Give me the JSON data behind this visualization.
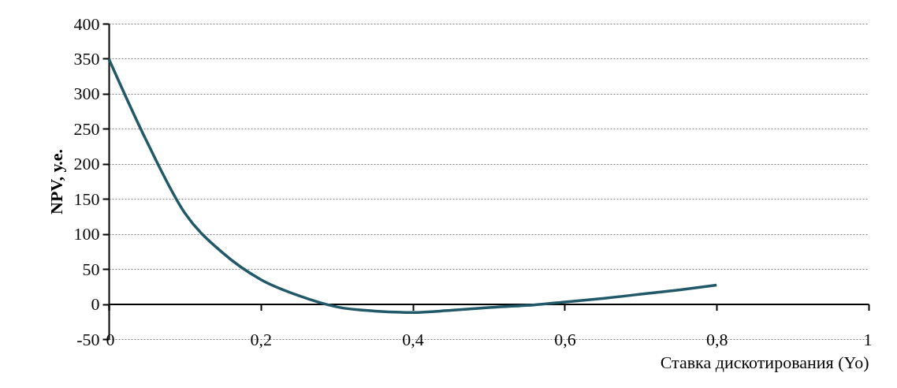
{
  "chart_data": {
    "type": "line",
    "xlabel": "Ставка дискотирования (Yo)",
    "ylabel": "NPV, у.е.",
    "x": [
      0,
      0.05,
      0.1,
      0.15,
      0.2,
      0.25,
      0.3,
      0.35,
      0.4,
      0.45,
      0.5,
      0.55,
      0.6,
      0.65,
      0.7,
      0.75,
      0.8
    ],
    "series": [
      {
        "color": "#215968",
        "values": [
          350,
          232,
          130,
          73,
          35,
          12,
          -4,
          -10,
          -12,
          -9,
          -5,
          -2,
          3,
          8,
          14,
          20,
          27
        ]
      }
    ],
    "xlim": [
      0,
      1
    ],
    "xticks": [
      0,
      {
        "value": 0.2,
        "label": "0,2"
      },
      {
        "value": 0.4,
        "label": "0,4"
      },
      {
        "value": 0.6,
        "label": "0,6"
      },
      {
        "value": 0.8,
        "label": "0,8"
      },
      1
    ],
    "ylim": [
      -50,
      400
    ],
    "yticks": [
      -50,
      0,
      50,
      100,
      150,
      200,
      250,
      300,
      350,
      400
    ],
    "grid": "y",
    "marker": "none",
    "line_style": "solid"
  }
}
